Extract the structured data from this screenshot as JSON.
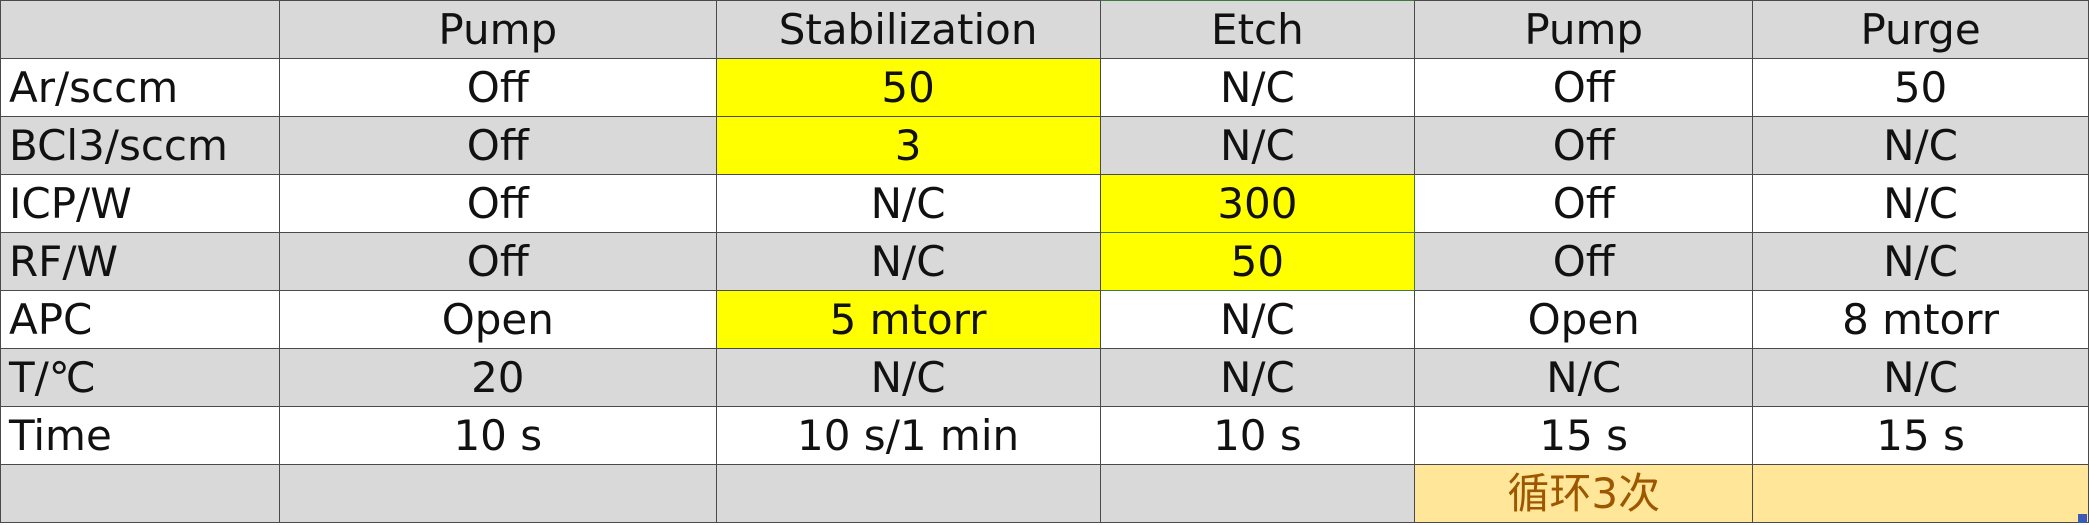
{
  "header": [
    "",
    "Pump",
    "Stabilization",
    "Etch",
    "Pump",
    "Purge"
  ],
  "rows": [
    {
      "label": "Ar/sccm",
      "cells": [
        "Off",
        "50",
        "N/C",
        "Off",
        "50"
      ]
    },
    {
      "label": "BCl3/sccm",
      "cells": [
        "Off",
        "3",
        "N/C",
        "Off",
        "N/C"
      ]
    },
    {
      "label": "ICP/W",
      "cells": [
        "Off",
        "N/C",
        "300",
        "Off",
        "N/C"
      ]
    },
    {
      "label": "RF/W",
      "cells": [
        "Off",
        "N/C",
        "50",
        "Off",
        "N/C"
      ]
    },
    {
      "label": "APC",
      "cells": [
        "Open",
        "5 mtorr",
        "N/C",
        "Open",
        "8 mtorr"
      ]
    },
    {
      "label": "T/℃",
      "cells": [
        "20",
        "N/C",
        "N/C",
        "N/C",
        "N/C"
      ]
    },
    {
      "label": "Time",
      "cells": [
        "10 s",
        "10 s/1 min",
        "10 s",
        "15 s",
        "15 s"
      ]
    }
  ],
  "footer": {
    "loop_note": "循环3次"
  },
  "colors": {
    "highlight": "#ffff00",
    "loop_fill": "#ffe699",
    "loop_text": "#9c5700",
    "band_grey": "#d9d9d9"
  }
}
